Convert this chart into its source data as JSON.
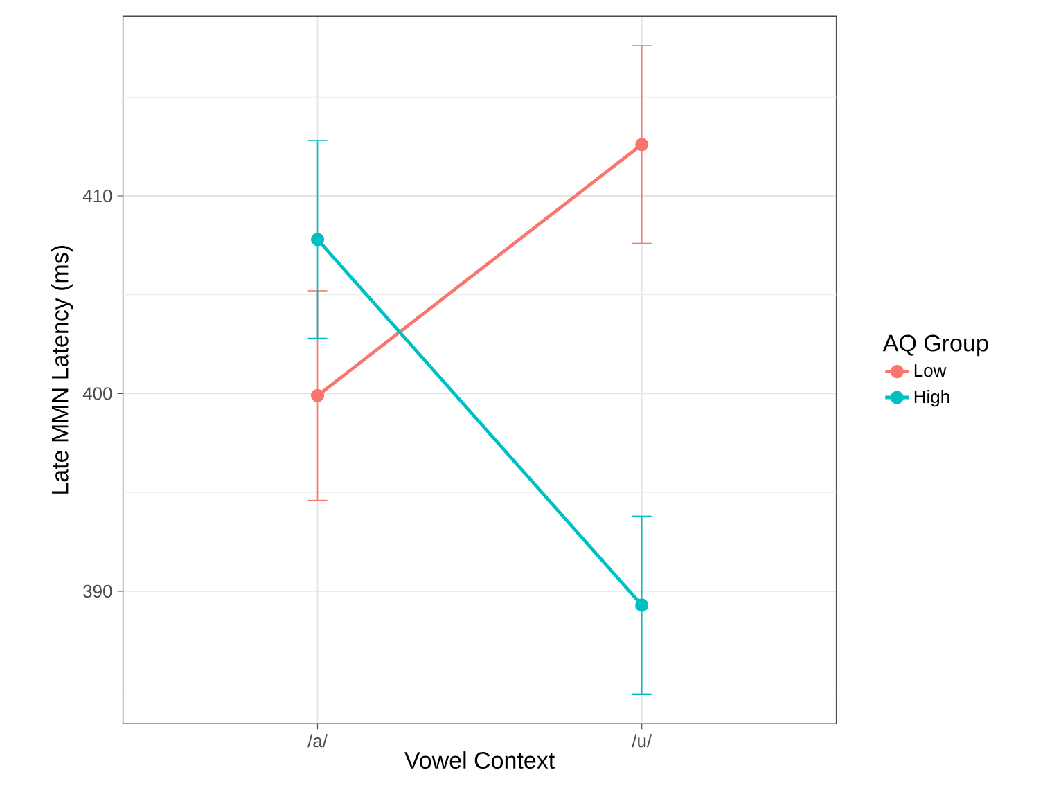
{
  "chart_data": {
    "type": "line",
    "xlabel": "Vowel Context",
    "ylabel": "Late MMN Latency (ms)",
    "legend_title": "AQ Group",
    "categories": [
      "/a/",
      "/u/"
    ],
    "series": [
      {
        "name": "Low",
        "color": "#f8766d",
        "values": [
          399.9,
          412.6
        ],
        "errors": [
          5.3,
          5
        ]
      },
      {
        "name": "High",
        "color": "#00bfc4",
        "values": [
          407.8,
          389.3
        ],
        "errors": [
          5,
          4.5
        ]
      }
    ],
    "ylim": [
      383.3,
      419.1
    ],
    "yticks": [
      {
        "value": 385,
        "label": null
      },
      390,
      {
        "value": 395,
        "label": null
      },
      400,
      {
        "value": 405,
        "label": null
      },
      410,
      {
        "value": 415,
        "label": null
      }
    ],
    "grid": true,
    "legend": "right",
    "marker": "circle",
    "line_style": "solid"
  }
}
